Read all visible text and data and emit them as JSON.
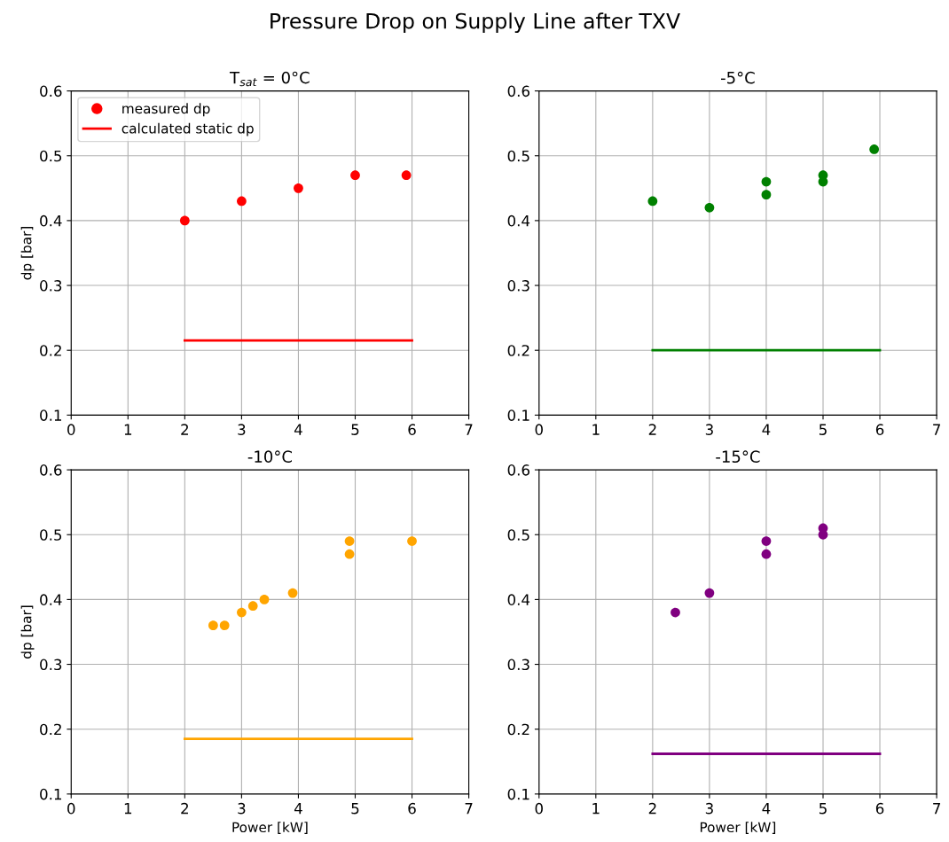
{
  "chart_data": [
    {
      "type": "scatter",
      "title": "T$_{sat}$ = 0°C",
      "ylabel": "dp [bar]",
      "annotations": [
        "Pressure Drop on Supply Line after TXV"
      ],
      "xlim": [
        0,
        7
      ],
      "xticks": [
        0,
        1,
        2,
        3,
        4,
        5,
        6,
        7
      ],
      "ylim": [
        0.1,
        0.6
      ],
      "yticks": [
        0.1,
        0.2,
        0.3,
        0.4,
        0.5,
        0.6
      ],
      "grid": true,
      "legend": "top left",
      "series": [
        {
          "name": "measured dp",
          "color": "#ff0000",
          "marker": "circle",
          "x": [
            2,
            3,
            4,
            5,
            5.9
          ],
          "values": [
            0.4,
            0.43,
            0.45,
            0.47,
            0.47
          ]
        },
        {
          "name": "calculated static dp",
          "type": "line",
          "color": "#ff0000",
          "x": [
            2,
            6
          ],
          "values": [
            0.215,
            0.215
          ]
        }
      ]
    },
    {
      "type": "scatter",
      "title": "-5°C",
      "xlim": [
        0,
        7
      ],
      "xticks": [
        0,
        1,
        2,
        3,
        4,
        5,
        6,
        7
      ],
      "ylim": [
        0.1,
        0.6
      ],
      "yticks": [
        0.1,
        0.2,
        0.3,
        0.4,
        0.5,
        0.6
      ],
      "grid": true,
      "series": [
        {
          "color": "#008000",
          "marker": "circle",
          "x": [
            2,
            3,
            4,
            4,
            5,
            5,
            5.9
          ],
          "values": [
            0.43,
            0.42,
            0.46,
            0.44,
            0.47,
            0.46,
            0.51
          ]
        },
        {
          "type": "line",
          "color": "#008000",
          "x": [
            2,
            6
          ],
          "values": [
            0.2,
            0.2
          ]
        }
      ]
    },
    {
      "type": "scatter",
      "title": "-10°C",
      "xlabel": "Power [kW]",
      "ylabel": "dp [bar]",
      "xlim": [
        0,
        7
      ],
      "xticks": [
        0,
        1,
        2,
        3,
        4,
        5,
        6,
        7
      ],
      "ylim": [
        0.1,
        0.6
      ],
      "yticks": [
        0.1,
        0.2,
        0.3,
        0.4,
        0.5,
        0.6
      ],
      "grid": true,
      "series": [
        {
          "color": "#ffa500",
          "marker": "circle",
          "x": [
            2.5,
            2.7,
            3,
            3.2,
            3.4,
            3.9,
            4.9,
            4.9,
            6
          ],
          "values": [
            0.36,
            0.36,
            0.38,
            0.39,
            0.4,
            0.41,
            0.49,
            0.47,
            0.49
          ]
        },
        {
          "type": "line",
          "color": "#ffa500",
          "x": [
            2,
            6
          ],
          "values": [
            0.185,
            0.185
          ]
        }
      ]
    },
    {
      "type": "scatter",
      "title": "-15°C",
      "xlabel": "Power [kW]",
      "xlim": [
        0,
        7
      ],
      "xticks": [
        0,
        1,
        2,
        3,
        4,
        5,
        6,
        7
      ],
      "ylim": [
        0.1,
        0.6
      ],
      "yticks": [
        0.1,
        0.2,
        0.3,
        0.4,
        0.5,
        0.6
      ],
      "grid": true,
      "series": [
        {
          "color": "#800080",
          "marker": "circle",
          "x": [
            2.4,
            3,
            4,
            4,
            5,
            5
          ],
          "values": [
            0.38,
            0.41,
            0.49,
            0.47,
            0.51,
            0.5
          ]
        },
        {
          "type": "line",
          "color": "#800080",
          "x": [
            2,
            6
          ],
          "values": [
            0.162,
            0.162
          ]
        }
      ]
    }
  ]
}
